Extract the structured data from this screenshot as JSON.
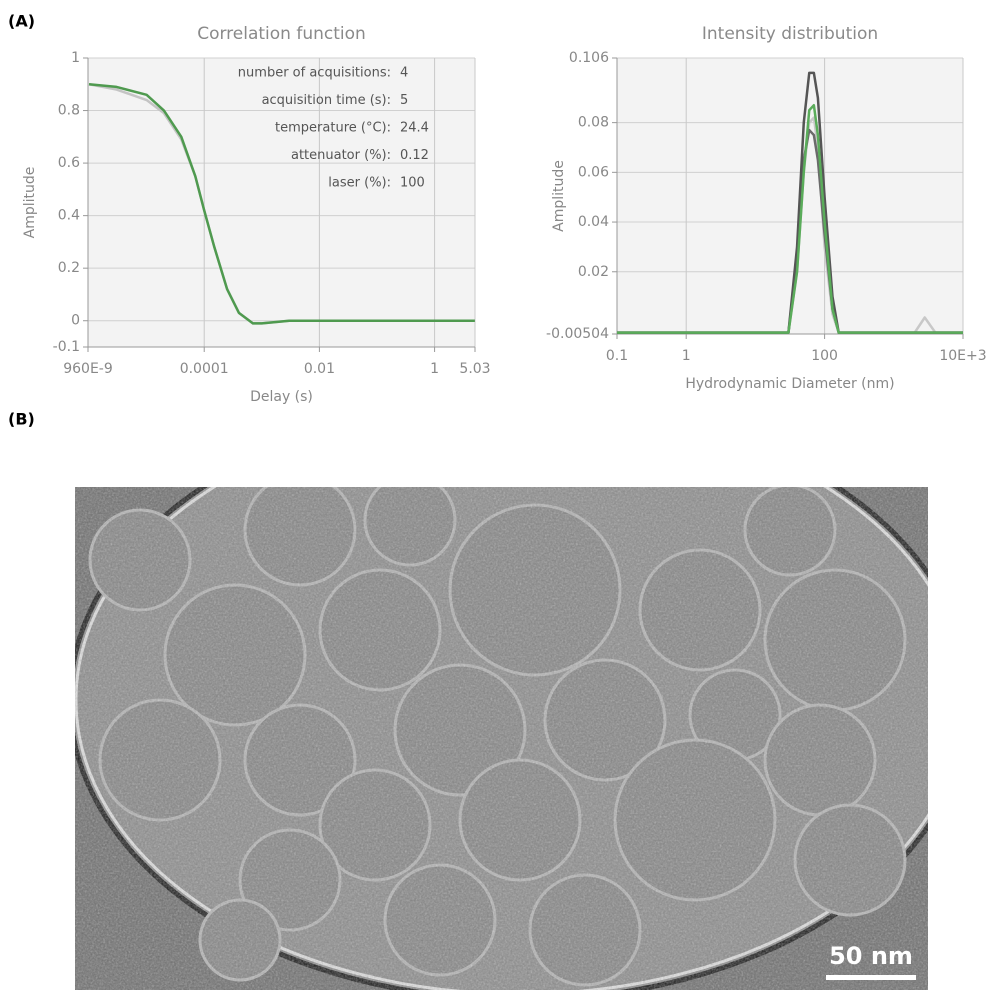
{
  "panel_labels": [
    "(A)",
    "(B)"
  ],
  "micrograph": {
    "scale_bar": "50 nm"
  },
  "chart_data": [
    {
      "type": "line",
      "title": "Correlation function",
      "xlabel": "Delay (s)",
      "ylabel": "Amplitude",
      "xscale": "log",
      "grid": true,
      "xlim": [
        9.6e-07,
        5.03
      ],
      "xticks": [
        {
          "value": 9.6e-07,
          "label": "960E-9"
        },
        0.0001,
        0.01,
        1,
        5.03
      ],
      "ylim": [
        -0.1,
        1
      ],
      "yticks": [
        1,
        0.8,
        0.6,
        0.4,
        0.2,
        0,
        -0.1
      ],
      "x": [
        1e-06,
        3e-06,
        1e-05,
        2e-05,
        4e-05,
        7e-05,
        0.0001,
        0.00015,
        0.00025,
        0.0004,
        0.0007,
        0.001,
        0.003,
        0.01,
        0.1,
        1,
        5
      ],
      "series": [
        {
          "color": "#c4c4c4",
          "values": [
            0.9,
            0.88,
            0.84,
            0.79,
            0.69,
            0.55,
            0.42,
            0.28,
            0.12,
            0.03,
            -0.01,
            -0.01,
            0,
            0,
            0,
            0,
            0
          ]
        },
        {
          "color": "#4f9a4f",
          "values": [
            0.9,
            0.89,
            0.86,
            0.8,
            0.7,
            0.55,
            0.42,
            0.28,
            0.12,
            0.03,
            -0.01,
            -0.01,
            0,
            0,
            0,
            0,
            0
          ]
        }
      ],
      "parameters": [
        {
          "label": "number of acquisitions:",
          "value": 4
        },
        {
          "label": "acquisition time (s):",
          "value": 5
        },
        {
          "label": "temperature (°C):",
          "value": 24.4
        },
        {
          "label": "attenuator (%):",
          "value": 0.12
        },
        {
          "label": "laser (%):",
          "value": 100
        }
      ]
    },
    {
      "type": "line",
      "title": "Intensity distribution",
      "xlabel": "Hydrodynamic Diameter (nm)",
      "ylabel": "Amplitude",
      "xscale": "log",
      "grid": true,
      "xlim": [
        0.1,
        10000
      ],
      "xticks": [
        0.1,
        1,
        100,
        {
          "value": 10000,
          "label": "10E+3"
        }
      ],
      "ylim": [
        -0.00504,
        0.106
      ],
      "yticks": [
        0.106,
        0.08,
        0.06,
        0.04,
        0.02,
        -0.00504
      ],
      "x": [
        0.1,
        1,
        10,
        30,
        40,
        50,
        60,
        70,
        80,
        100,
        130,
        160,
        1000,
        2000,
        2800,
        4000,
        10000
      ],
      "series": [
        {
          "color": "#c8c8c8",
          "values": [
            -0.0045,
            -0.0045,
            -0.0045,
            -0.0045,
            0.02,
            0.06,
            0.08,
            0.082,
            0.07,
            0.03,
            0.003,
            -0.0045,
            -0.0045,
            -0.0045,
            0.0016,
            -0.0045,
            -0.0045
          ]
        },
        {
          "color": "#6a6a6a",
          "values": [
            -0.0045,
            -0.0045,
            -0.0045,
            -0.0045,
            0.025,
            0.065,
            0.077,
            0.075,
            0.065,
            0.035,
            0.005,
            -0.0045,
            -0.0045,
            -0.0045,
            -0.0045,
            -0.0045,
            -0.0045
          ]
        },
        {
          "color": "#555555",
          "values": [
            -0.0045,
            -0.0045,
            -0.0045,
            -0.0045,
            0.03,
            0.08,
            0.1,
            0.1,
            0.09,
            0.05,
            0.01,
            -0.0045,
            -0.0045,
            -0.0045,
            -0.0045,
            -0.0045,
            -0.0045
          ]
        },
        {
          "color": "#5aac5a",
          "values": [
            -0.0045,
            -0.0045,
            -0.0045,
            -0.0045,
            0.02,
            0.06,
            0.085,
            0.087,
            0.075,
            0.04,
            0.005,
            -0.0045,
            -0.0045,
            -0.0045,
            -0.0045,
            -0.0045,
            -0.0045
          ]
        }
      ]
    }
  ]
}
